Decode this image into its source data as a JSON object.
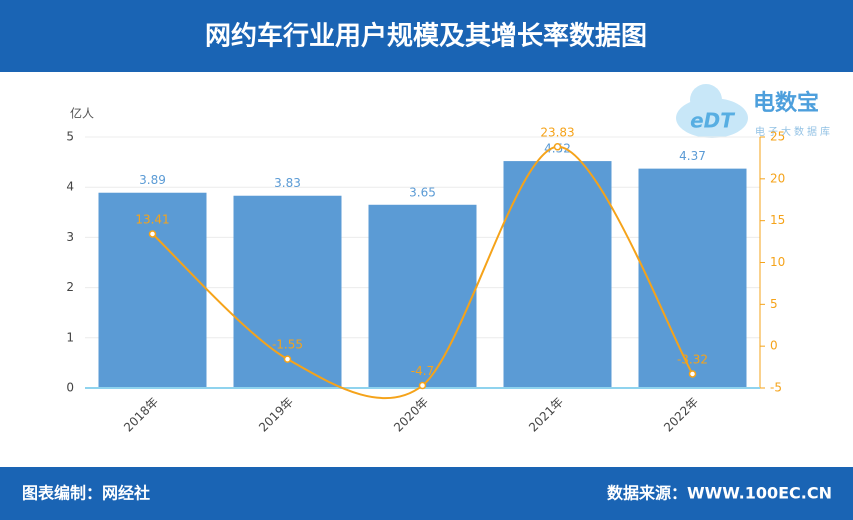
{
  "header": {
    "title": "网约车行业用户规模及其增长率数据图"
  },
  "watermark": {
    "badge": "eDT",
    "name": "电数宝",
    "sub": "电子大数据库"
  },
  "chart_data": {
    "type": "bar",
    "y_label": "亿人",
    "categories": [
      "2018年",
      "2019年",
      "2020年",
      "2021年",
      "2022年"
    ],
    "series": [
      {
        "type": "bar",
        "color": "#5b9bd5",
        "values": [
          3.89,
          3.83,
          3.65,
          4.52,
          4.37
        ]
      },
      {
        "type": "line",
        "axis": "y2",
        "color": "#f5a31a",
        "values": [
          13.41,
          -1.55,
          -4.7,
          23.83,
          -3.32
        ]
      }
    ],
    "ylim": [
      0,
      5
    ],
    "yticks": [
      0,
      1,
      2,
      3,
      4,
      5
    ],
    "y2lim": [
      -5,
      25
    ],
    "y2ticks": [
      -5,
      0,
      5,
      10,
      15,
      20,
      25
    ],
    "grid": true
  },
  "footer": {
    "left": "图表编制：网经社",
    "right": "数据来源：WWW.100EC.CN"
  }
}
